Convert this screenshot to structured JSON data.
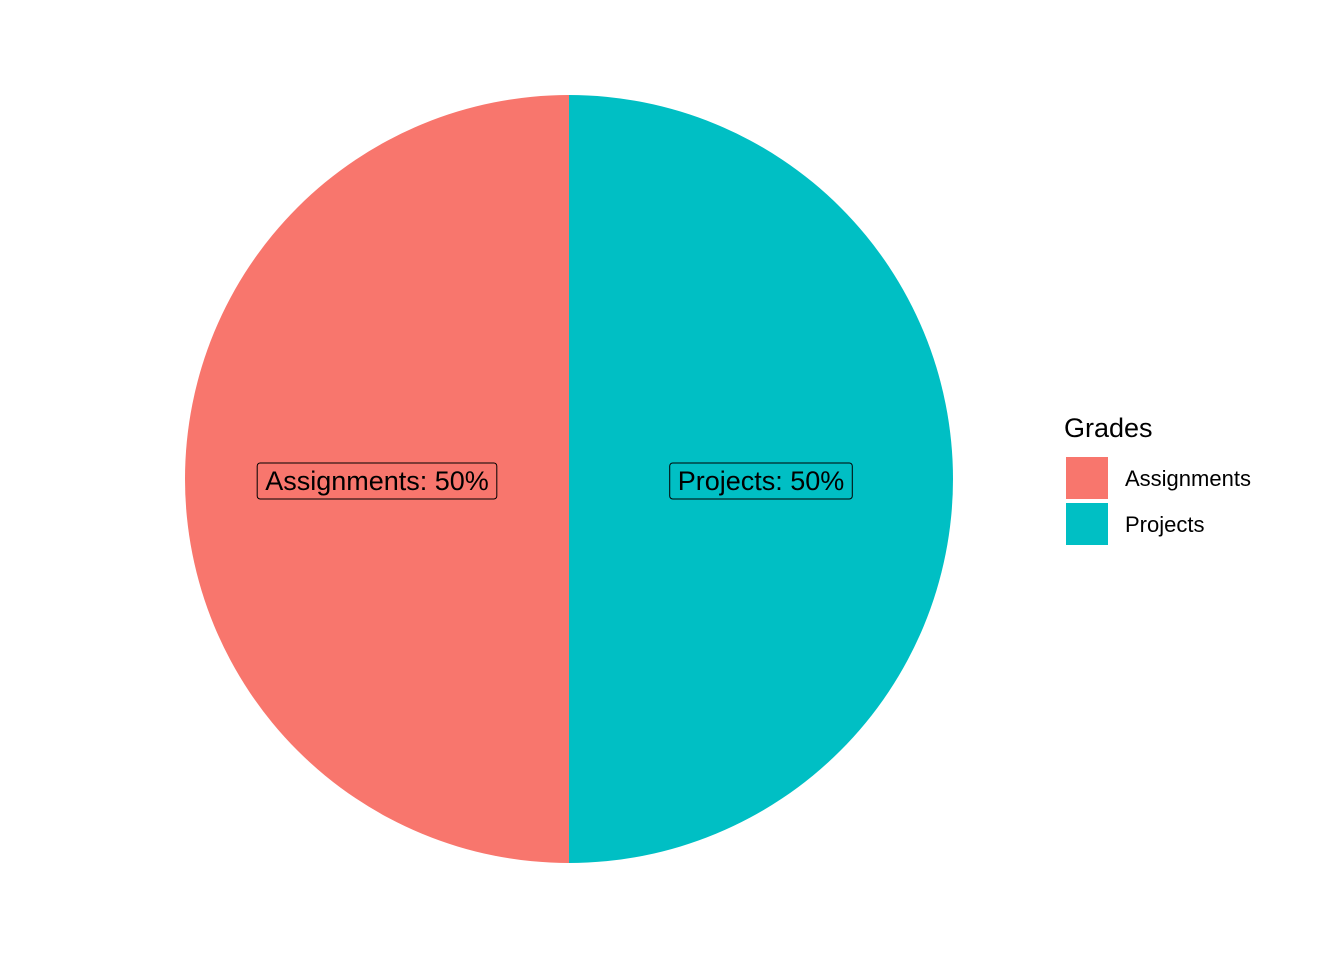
{
  "chart_data": {
    "type": "pie",
    "categories": [
      "Assignments",
      "Projects"
    ],
    "values": [
      50,
      50
    ],
    "slice_labels": [
      "Assignments: 50%",
      "Projects: 50%"
    ],
    "colors": [
      "#F8766D",
      "#00BFC4"
    ],
    "legend": {
      "title": "Grades",
      "position": "right",
      "entries": [
        "Assignments",
        "Projects"
      ]
    },
    "title": "",
    "xlabel": "",
    "ylabel": ""
  }
}
